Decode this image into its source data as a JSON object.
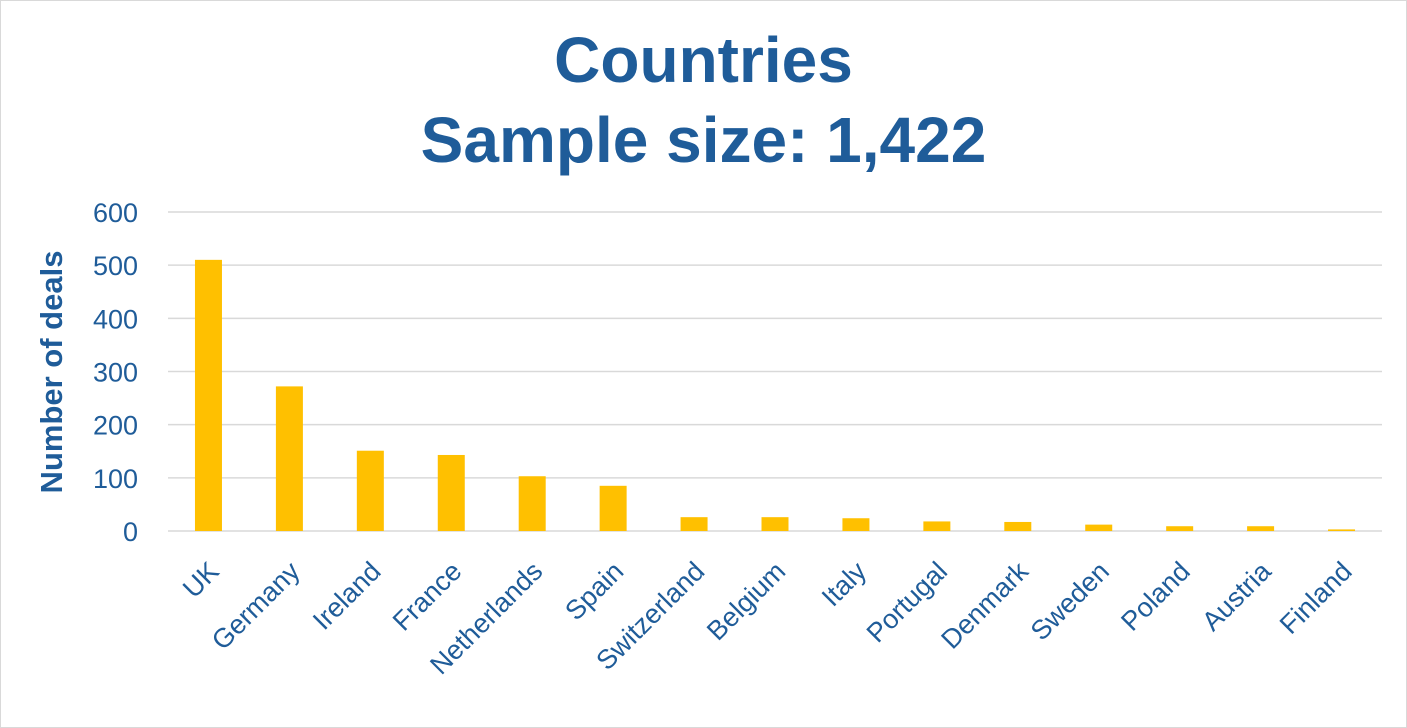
{
  "chart_data": {
    "type": "bar",
    "title_lines": [
      "Countries",
      "Sample size: 1,422"
    ],
    "xlabel": "",
    "ylabel": "Number of deals",
    "ylim": [
      0,
      600
    ],
    "yticks": [
      "0",
      "100",
      "200",
      "300",
      "400",
      "500",
      "600"
    ],
    "categories": [
      "UK",
      "Germany",
      "Ireland",
      "France",
      "Netherlands",
      "Spain",
      "Switzerland",
      "Belgium",
      "Italy",
      "Portugal",
      "Denmark",
      "Sweden",
      "Poland",
      "Austria",
      "Finland"
    ],
    "values": [
      510,
      272,
      151,
      143,
      103,
      85,
      26,
      26,
      24,
      18,
      17,
      12,
      9,
      9,
      3
    ],
    "bar_color": "#ffc000",
    "text_color": "#1f5c99",
    "grid": true,
    "legend": "none"
  }
}
